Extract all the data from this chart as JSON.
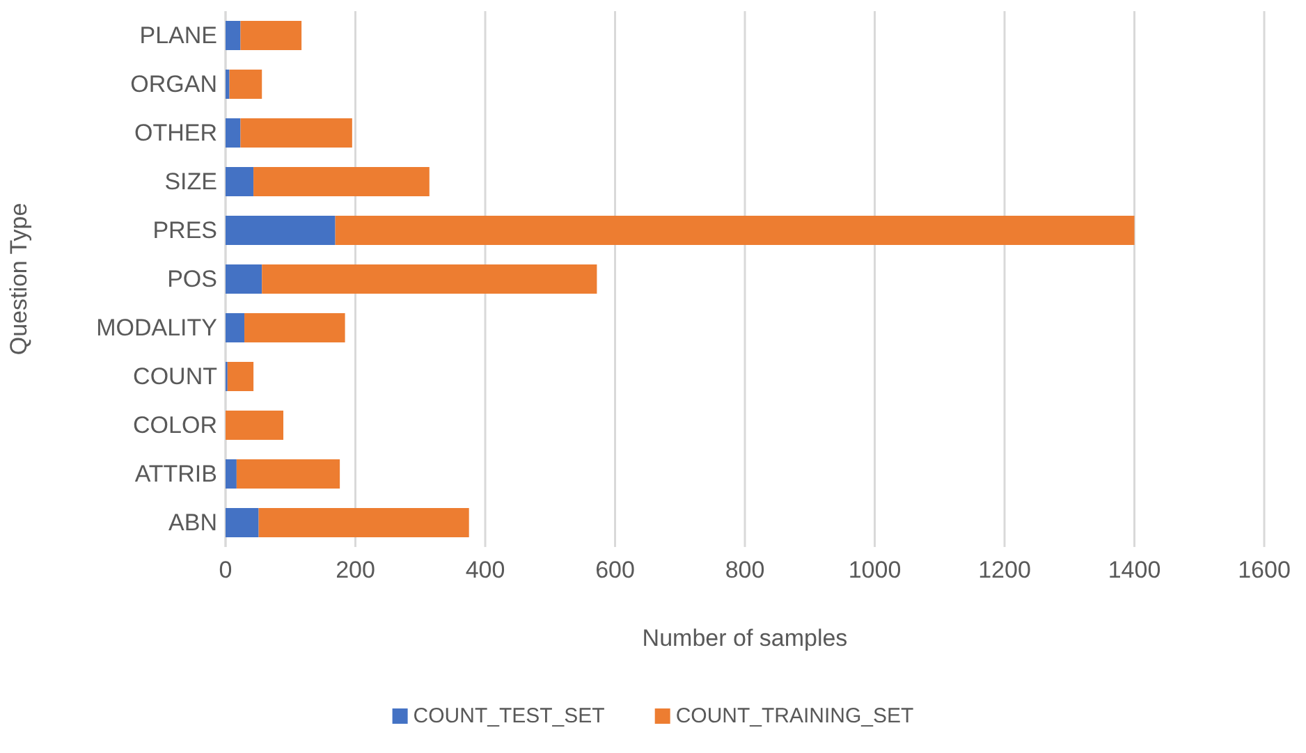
{
  "chart_data": {
    "type": "bar",
    "orientation": "horizontal",
    "stacked": true,
    "xlabel": "Number of samples",
    "ylabel": "Question Type",
    "categories": [
      "PLANE",
      "ORGAN",
      "OTHER",
      "SIZE",
      "PRES",
      "POS",
      "MODALITY",
      "COUNT",
      "COLOR",
      "ATTRIB",
      "ABN"
    ],
    "series": [
      {
        "name": "COUNT_TEST_SET",
        "color": "#4472c4",
        "values": [
          23,
          6,
          23,
          43,
          169,
          56,
          29,
          3,
          0,
          17,
          51
        ]
      },
      {
        "name": "COUNT_TRAINING_SET",
        "color": "#ed7d31",
        "values": [
          94,
          50,
          172,
          271,
          1231,
          516,
          155,
          40,
          89,
          159,
          324
        ]
      }
    ],
    "xlim": [
      0,
      1600
    ],
    "xticks": [
      0,
      200,
      400,
      600,
      800,
      1000,
      1200,
      1400,
      1600
    ],
    "grid": "x",
    "legend": "bottom"
  }
}
